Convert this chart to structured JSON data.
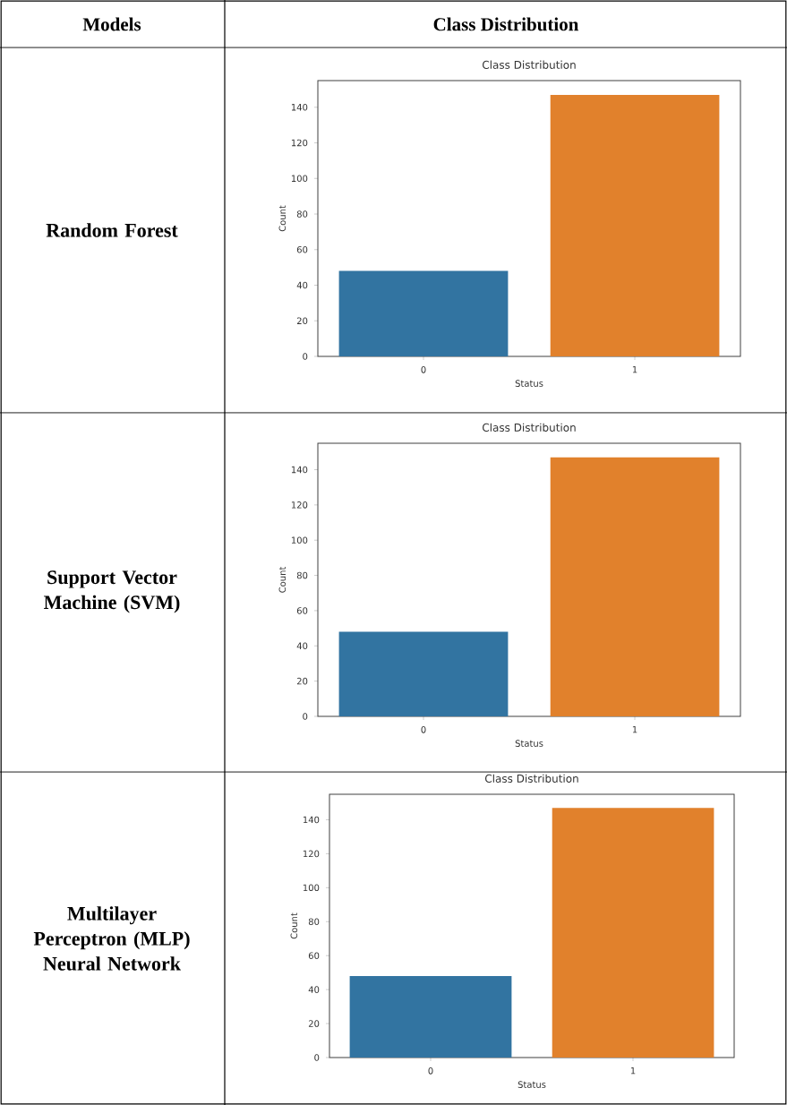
{
  "chart_data": [
    {
      "type": "bar",
      "title": "Class Distribution",
      "xlabel": "Status",
      "ylabel": "Count",
      "categories": [
        "0",
        "1"
      ],
      "values": [
        48,
        147
      ],
      "colors": [
        "#3274a1",
        "#e1812c"
      ],
      "ylim": [
        0,
        155
      ],
      "yticks": [
        0,
        20,
        40,
        60,
        80,
        100,
        120,
        140
      ],
      "annotations": [
        "Models",
        "Class Distribution",
        "Random Forest"
      ]
    },
    {
      "type": "bar",
      "title": "Class Distribution",
      "xlabel": "Status",
      "ylabel": "Count",
      "categories": [
        "0",
        "1"
      ],
      "values": [
        48,
        147
      ],
      "colors": [
        "#3274a1",
        "#e1812c"
      ],
      "ylim": [
        0,
        155
      ],
      "yticks": [
        0,
        20,
        40,
        60,
        80,
        100,
        120,
        140
      ],
      "annotations": [
        "Support Vector Machine (SVM)"
      ]
    },
    {
      "type": "bar",
      "title": "Class Distribution",
      "xlabel": "Status",
      "ylabel": "Count",
      "categories": [
        "0",
        "1"
      ],
      "values": [
        48,
        147
      ],
      "colors": [
        "#3274a1",
        "#e1812c"
      ],
      "ylim": [
        0,
        155
      ],
      "yticks": [
        0,
        20,
        40,
        60,
        80,
        100,
        120,
        140
      ],
      "annotations": [
        "Multilayer Perceptron (MLP) Neural Network"
      ]
    }
  ]
}
